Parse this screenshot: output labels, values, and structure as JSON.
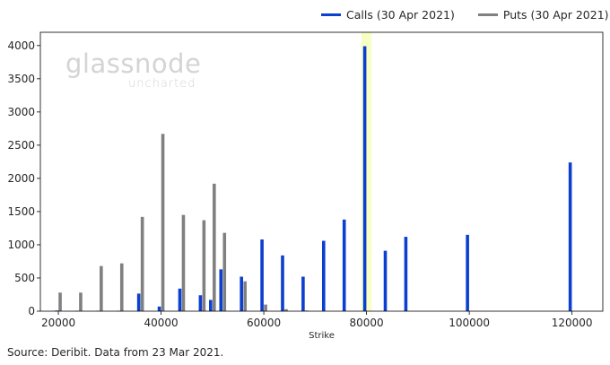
{
  "legend": {
    "calls_label": "Calls (30 Apr 2021)",
    "puts_label": "Puts (30 Apr 2021)"
  },
  "watermark": {
    "main": "glassnode",
    "sub": "uncharted"
  },
  "source_note": "Source: Deribit. Data from 23 Mar 2021.",
  "colors": {
    "calls": "#0b3fcf",
    "puts": "#808080",
    "highlight": "#f7ffc4"
  },
  "chart_data": {
    "type": "bar",
    "title": "",
    "xlabel": "Strike",
    "ylabel": "",
    "xlim": [
      16500,
      126000
    ],
    "ylim": [
      0,
      4200
    ],
    "xticks": [
      20000,
      40000,
      60000,
      80000,
      100000,
      120000
    ],
    "yticks": [
      0,
      500,
      1000,
      1500,
      2000,
      2500,
      3000,
      3500,
      4000
    ],
    "highlight_range": [
      79000,
      81000
    ],
    "series": [
      {
        "name": "Calls (30 Apr 2021)",
        "color": "#0b3fcf",
        "points": [
          {
            "strike": 20000,
            "value": 10
          },
          {
            "strike": 24000,
            "value": 5
          },
          {
            "strike": 28000,
            "value": 5
          },
          {
            "strike": 32000,
            "value": 5
          },
          {
            "strike": 36000,
            "value": 265
          },
          {
            "strike": 40000,
            "value": 70
          },
          {
            "strike": 44000,
            "value": 340
          },
          {
            "strike": 48000,
            "value": 240
          },
          {
            "strike": 50000,
            "value": 170
          },
          {
            "strike": 52000,
            "value": 630
          },
          {
            "strike": 56000,
            "value": 520
          },
          {
            "strike": 60000,
            "value": 1080
          },
          {
            "strike": 64000,
            "value": 840
          },
          {
            "strike": 68000,
            "value": 520
          },
          {
            "strike": 72000,
            "value": 1060
          },
          {
            "strike": 76000,
            "value": 1380
          },
          {
            "strike": 80000,
            "value": 3990
          },
          {
            "strike": 84000,
            "value": 910
          },
          {
            "strike": 88000,
            "value": 1120
          },
          {
            "strike": 100000,
            "value": 1150
          },
          {
            "strike": 120000,
            "value": 2240
          }
        ]
      },
      {
        "name": "Puts (30 Apr 2021)",
        "color": "#808080",
        "points": [
          {
            "strike": 20000,
            "value": 280
          },
          {
            "strike": 24000,
            "value": 280
          },
          {
            "strike": 28000,
            "value": 680
          },
          {
            "strike": 32000,
            "value": 720
          },
          {
            "strike": 36000,
            "value": 1420
          },
          {
            "strike": 40000,
            "value": 2670
          },
          {
            "strike": 44000,
            "value": 1450
          },
          {
            "strike": 48000,
            "value": 1370
          },
          {
            "strike": 50000,
            "value": 1920
          },
          {
            "strike": 52000,
            "value": 1180
          },
          {
            "strike": 56000,
            "value": 450
          },
          {
            "strike": 60000,
            "value": 100
          },
          {
            "strike": 64000,
            "value": 30
          },
          {
            "strike": 68000,
            "value": 10
          }
        ]
      }
    ]
  }
}
